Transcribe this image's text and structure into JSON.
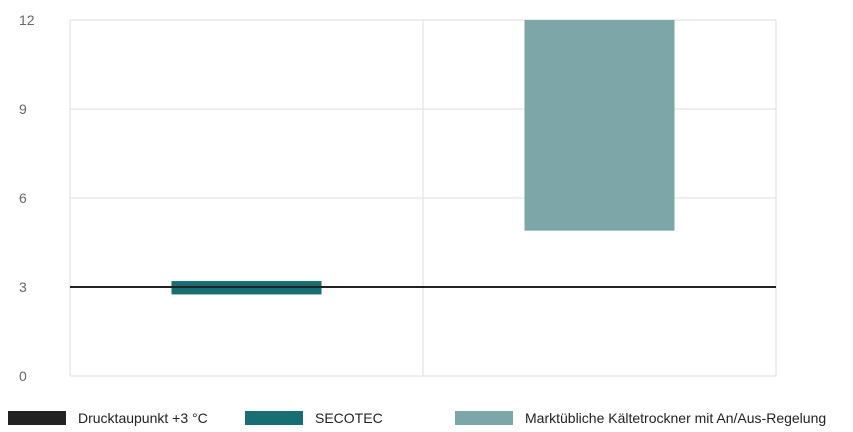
{
  "chart_data": {
    "type": "bar",
    "subtype": "floating-range",
    "ylim": [
      0,
      12
    ],
    "yticks": [
      "0",
      "3",
      "6",
      "9",
      "12"
    ],
    "grid": true,
    "categories": [
      "",
      ""
    ],
    "series": [
      {
        "name": "SECOTEC",
        "color": "#176e73",
        "ranges": [
          [
            2.75,
            3.2
          ],
          null
        ]
      },
      {
        "name": "Marktübliche Kältetrockner mit An/Aus-Regelung",
        "color": "#7ca6a8",
        "ranges": [
          null,
          [
            4.9,
            12
          ]
        ]
      }
    ],
    "reference_line": {
      "name": "Drucktaupunkt +3 °C",
      "value": 3,
      "color": "#222222"
    },
    "legend_position": "bottom"
  },
  "legend": [
    {
      "label": "Drucktaupunkt +3 °C",
      "color": "#222222"
    },
    {
      "label": "SECOTEC",
      "color": "#176e73"
    },
    {
      "label": "Marktübliche Kältetrockner mit An/Aus-Regelung",
      "color": "#7ca6a8"
    }
  ]
}
